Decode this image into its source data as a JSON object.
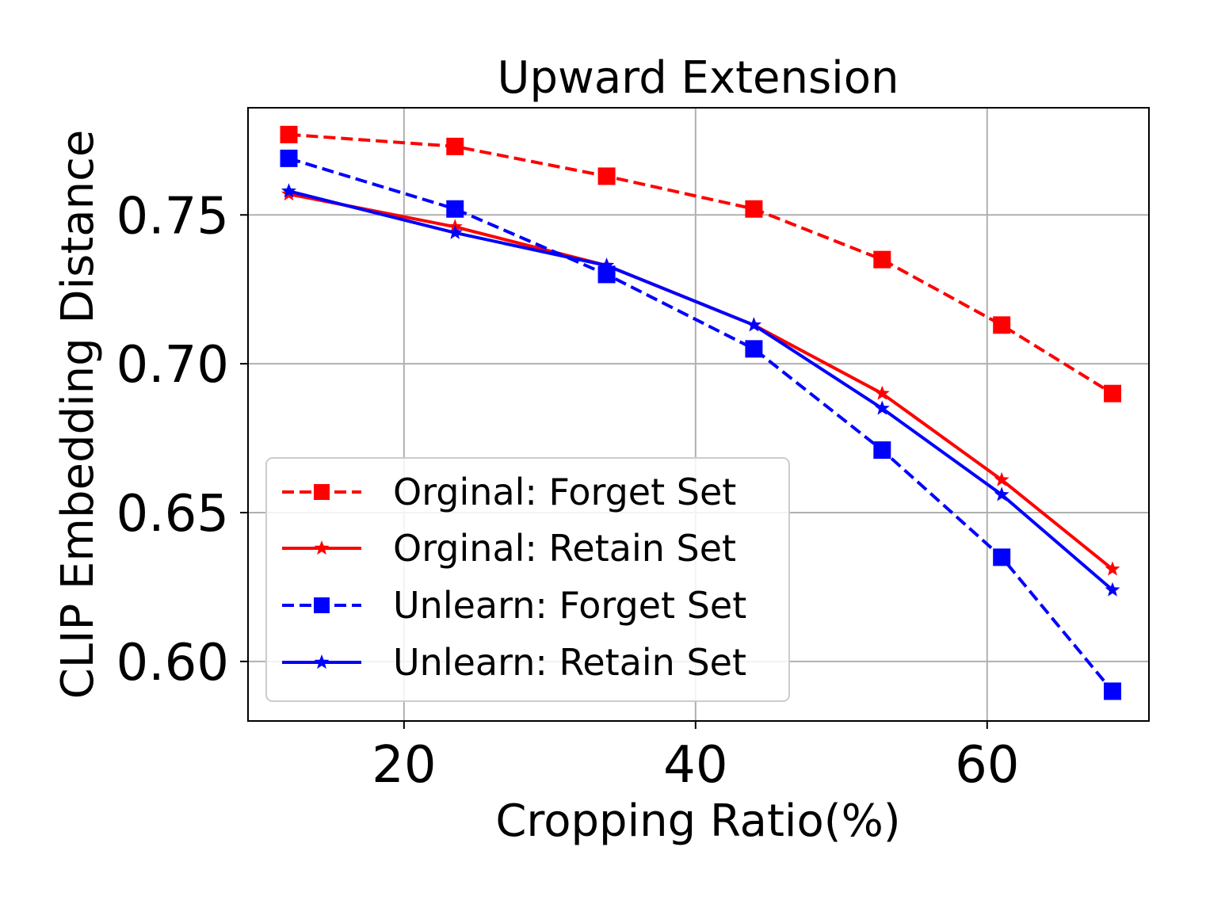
{
  "chart_data": {
    "type": "line",
    "title": "Upward Extension",
    "xlabel": "Cropping Ratio(%)",
    "ylabel": "CLIP Embedding Distance",
    "xlim": [
      9.3,
      71.1
    ],
    "ylim": [
      0.58,
      0.786
    ],
    "xticks": [
      20,
      40,
      60
    ],
    "xtick_labels": [
      "20",
      "40",
      "60"
    ],
    "yticks": [
      0.6,
      0.65,
      0.7,
      0.75
    ],
    "ytick_labels": [
      "0.60",
      "0.65",
      "0.70",
      "0.75"
    ],
    "grid": true,
    "legend_position": "lower-left",
    "x": [
      12.1,
      23.5,
      33.9,
      44.0,
      52.8,
      61.0,
      68.6
    ],
    "series": [
      {
        "name": "Orginal: Forget Set",
        "color": "#ff0000",
        "linestyle": "dashed",
        "marker": "square",
        "values": [
          0.777,
          0.773,
          0.763,
          0.752,
          0.735,
          0.713,
          0.69
        ]
      },
      {
        "name": "Orginal: Retain Set",
        "color": "#ff0000",
        "linestyle": "solid",
        "marker": "star",
        "values": [
          0.757,
          0.746,
          0.733,
          0.713,
          0.69,
          0.661,
          0.631
        ]
      },
      {
        "name": "Unlearn: Forget Set",
        "color": "#0000ff",
        "linestyle": "dashed",
        "marker": "square",
        "values": [
          0.769,
          0.752,
          0.73,
          0.705,
          0.671,
          0.635,
          0.59
        ]
      },
      {
        "name": "Unlearn: Retain Set",
        "color": "#0000ff",
        "linestyle": "solid",
        "marker": "star",
        "values": [
          0.758,
          0.744,
          0.733,
          0.713,
          0.685,
          0.656,
          0.624
        ]
      }
    ]
  }
}
